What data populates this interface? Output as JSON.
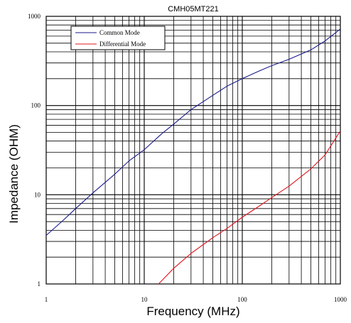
{
  "chart_data": {
    "type": "line",
    "title": "CMH05MT221",
    "xlabel": "Frequency (MHz)",
    "ylabel": "Impedance (OHM)",
    "x_scale": "log",
    "y_scale": "log",
    "xlim": [
      1,
      1000
    ],
    "ylim": [
      1,
      1000
    ],
    "x_tick_labels": [
      "1",
      "10",
      "100",
      "1000"
    ],
    "y_tick_labels": [
      "1",
      "10",
      "100",
      "1000"
    ],
    "grid": true,
    "legend_position": "top-left",
    "series": [
      {
        "name": "Common Mode",
        "color": "#1a1a8c",
        "x": [
          1,
          1.5,
          2,
          3,
          5,
          7,
          10,
          15,
          20,
          30,
          50,
          70,
          100,
          150,
          200,
          300,
          500,
          700,
          1000
        ],
        "y": [
          3.5,
          5.2,
          7,
          10.5,
          17,
          24,
          32,
          48,
          62,
          90,
          130,
          165,
          200,
          245,
          280,
          330,
          420,
          530,
          720
        ]
      },
      {
        "name": "Differential Mode",
        "color": "#e0141e",
        "x": [
          14,
          20,
          30,
          50,
          70,
          100,
          150,
          200,
          300,
          500,
          700,
          1000
        ],
        "y": [
          1,
          1.5,
          2.2,
          3.3,
          4.2,
          5.6,
          7.5,
          9.3,
          12.5,
          19.5,
          28,
          52
        ]
      }
    ]
  }
}
